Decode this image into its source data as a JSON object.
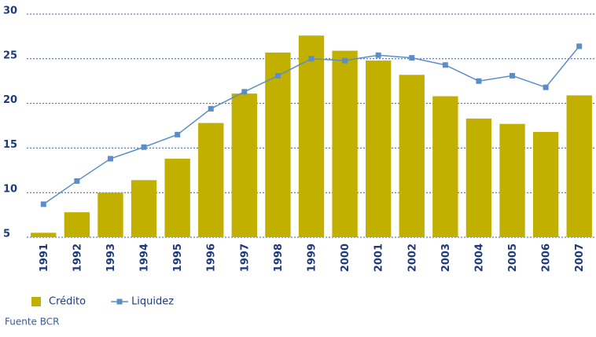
{
  "chart_data": {
    "type": "bar_line",
    "categories": [
      "1991",
      "1992",
      "1993",
      "1994",
      "1995",
      "1996",
      "1997",
      "1998",
      "1999",
      "2000",
      "2001",
      "2002",
      "2003",
      "2004",
      "2005",
      "2006",
      "2007"
    ],
    "series": [
      {
        "name": "Crédito",
        "color": "#c2b000",
        "type": "bar",
        "values": [
          5.5,
          7.8,
          10.0,
          11.4,
          13.8,
          17.8,
          21.1,
          25.7,
          27.6,
          25.9,
          24.8,
          23.2,
          20.8,
          18.3,
          17.7,
          16.8,
          20.9
        ]
      },
      {
        "name": "Liquidez",
        "color": "#5b8ec8",
        "type": "line",
        "values": [
          8.7,
          11.3,
          13.8,
          15.1,
          16.5,
          19.4,
          21.3,
          23.1,
          25.0,
          24.8,
          25.4,
          25.1,
          24.3,
          22.5,
          23.1,
          21.8,
          26.4
        ]
      }
    ],
    "ylim": [
      5,
      30
    ],
    "yticks": [
      5,
      10,
      15,
      20,
      25,
      30
    ],
    "grid": true,
    "source": "Fuente BCR"
  }
}
